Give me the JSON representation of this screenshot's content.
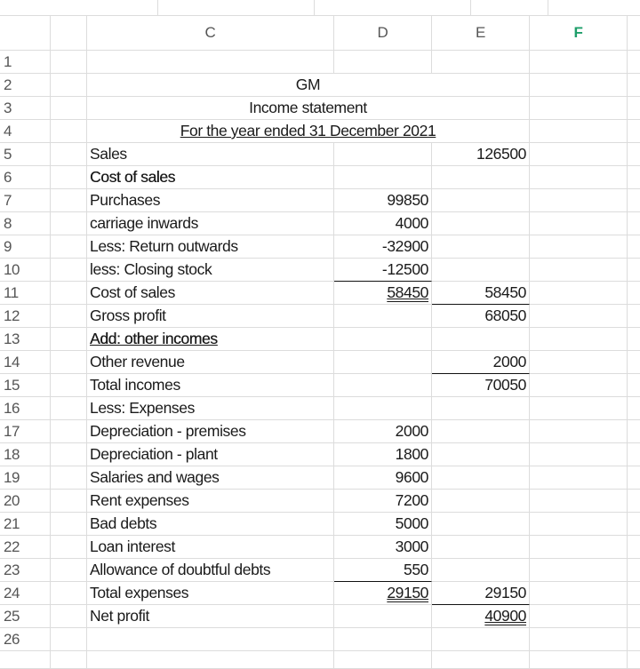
{
  "columns": [
    "",
    "C",
    "D",
    "E",
    "F"
  ],
  "active_column": "F",
  "title": {
    "company": "GM",
    "statement": "Income statement",
    "period": "For the year ended 31 December 2021"
  },
  "rows": [
    {
      "n": "1",
      "c": "",
      "d": "",
      "e": ""
    },
    {
      "n": "2"
    },
    {
      "n": "3"
    },
    {
      "n": "4"
    },
    {
      "n": "5",
      "c": "Sales",
      "d": "",
      "e": "126500"
    },
    {
      "n": "6",
      "c": "Cost of sales",
      "d": "",
      "e": ""
    },
    {
      "n": "7",
      "c": "Purchases",
      "d": "99850",
      "e": ""
    },
    {
      "n": "8",
      "c": "carriage inwards",
      "d": "4000",
      "e": ""
    },
    {
      "n": "9",
      "c": "Less: Return outwards",
      "d": "-32900",
      "e": ""
    },
    {
      "n": "10",
      "c": "less: Closing stock",
      "d": "-12500",
      "e": ""
    },
    {
      "n": "11",
      "c": "Cost of sales",
      "d": "58450",
      "e": "58450"
    },
    {
      "n": "12",
      "c": "Gross profit",
      "d": "",
      "e": "68050"
    },
    {
      "n": "13",
      "c": "Add: other incomes",
      "d": "",
      "e": ""
    },
    {
      "n": "14",
      "c": "Other revenue",
      "d": "",
      "e": "2000"
    },
    {
      "n": "15",
      "c": "Total incomes",
      "d": "",
      "e": "70050"
    },
    {
      "n": "16",
      "c": "Less: Expenses",
      "d": "",
      "e": ""
    },
    {
      "n": "17",
      "c": "Depreciation - premises",
      "d": "2000",
      "e": ""
    },
    {
      "n": "18",
      "c": "Depreciation - plant",
      "d": "1800",
      "e": ""
    },
    {
      "n": "19",
      "c": "Salaries and wages",
      "d": "9600",
      "e": ""
    },
    {
      "n": "20",
      "c": "Rent expenses",
      "d": "7200",
      "e": ""
    },
    {
      "n": "21",
      "c": "Bad debts",
      "d": "5000",
      "e": ""
    },
    {
      "n": "22",
      "c": "Loan interest",
      "d": "3000",
      "e": ""
    },
    {
      "n": "23",
      "c": "Allowance of doubtful debts",
      "d": "550",
      "e": ""
    },
    {
      "n": "24",
      "c": "Total expenses",
      "d": "29150",
      "e": "29150"
    },
    {
      "n": "25",
      "c": "Net profit",
      "d": "",
      "e": "40900"
    },
    {
      "n": "26",
      "c": "",
      "d": "",
      "e": ""
    }
  ]
}
